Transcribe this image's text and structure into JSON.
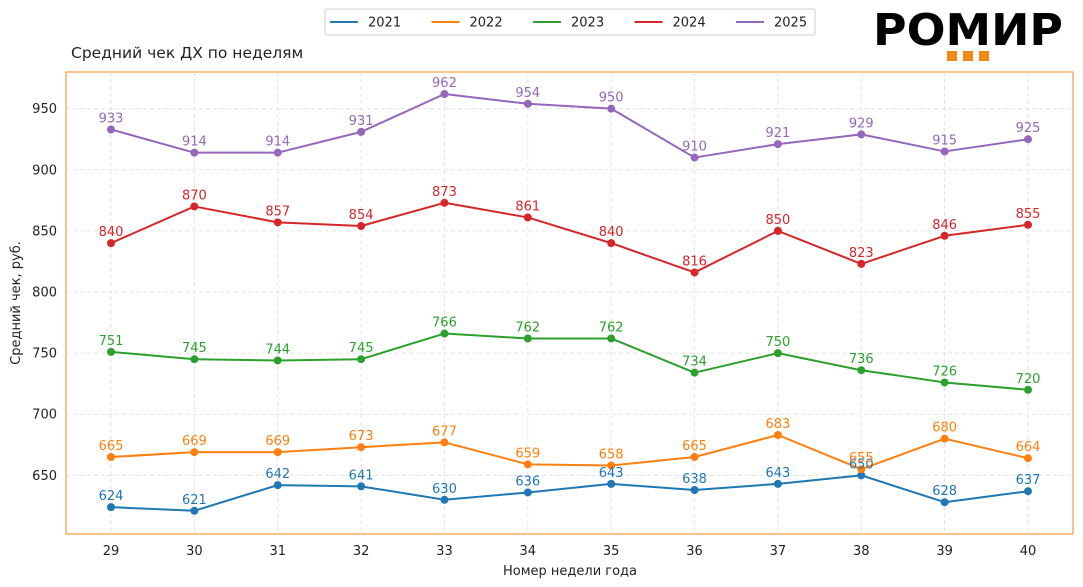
{
  "brand": {
    "logo_text": "РОМИР",
    "accent_color": "#f28a13"
  },
  "chart_data": {
    "type": "line",
    "title": "Средний чек ДХ по неделям",
    "xlabel": "Номер недели года",
    "ylabel": "Средний чек, руб.",
    "x": [
      29,
      30,
      31,
      32,
      33,
      34,
      35,
      36,
      37,
      38,
      39,
      40
    ],
    "ylim": [
      602,
      980
    ],
    "yticks": [
      650,
      700,
      750,
      800,
      850,
      900,
      950
    ],
    "grid": true,
    "legend_position": "top-center",
    "series": [
      {
        "name": "2021",
        "color": "#1f77b4",
        "values": [
          624,
          621,
          642,
          641,
          630,
          636,
          643,
          638,
          643,
          650,
          628,
          637
        ]
      },
      {
        "name": "2022",
        "color": "#ff7f0e",
        "values": [
          665,
          669,
          669,
          673,
          677,
          659,
          658,
          665,
          683,
          655,
          680,
          664
        ]
      },
      {
        "name": "2023",
        "color": "#2ca02c",
        "values": [
          751,
          745,
          744,
          745,
          766,
          762,
          762,
          734,
          750,
          736,
          726,
          720
        ]
      },
      {
        "name": "2024",
        "color": "#d62728",
        "values": [
          840,
          870,
          857,
          854,
          873,
          861,
          840,
          816,
          850,
          823,
          846,
          855
        ]
      },
      {
        "name": "2025",
        "color": "#9467bd",
        "values": [
          933,
          914,
          914,
          931,
          962,
          954,
          950,
          910,
          921,
          929,
          915,
          925
        ]
      }
    ]
  }
}
